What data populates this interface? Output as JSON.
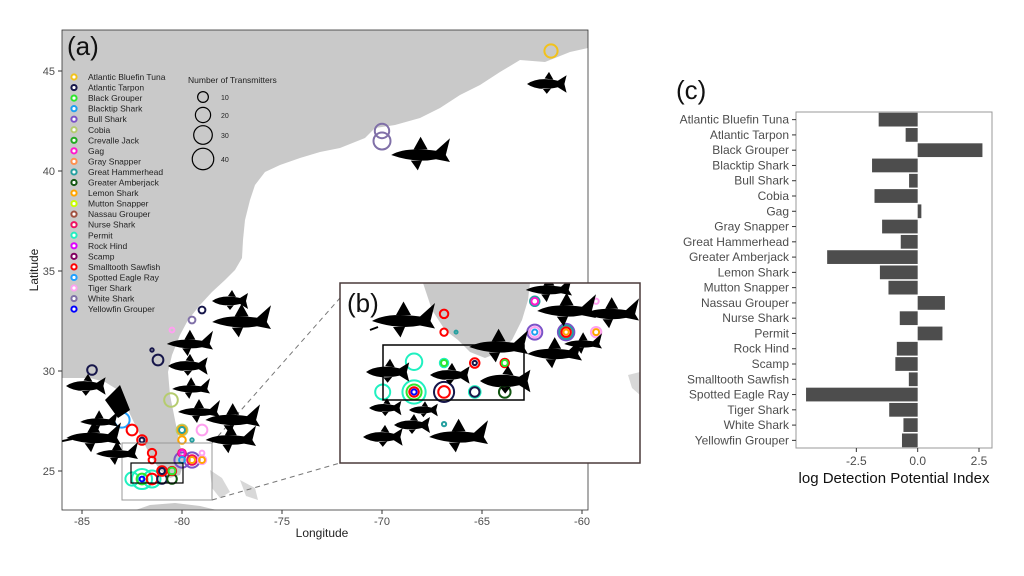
{
  "panels": {
    "a": "(a)",
    "b": "(b)",
    "c": "(c)"
  },
  "chart_data": [
    {
      "type": "scatter",
      "subtype": "bubble-map",
      "title": "",
      "xlabel": "Longitude",
      "ylabel": "Latitude",
      "xlim": [
        -86,
        -59.7
      ],
      "ylim": [
        23.05,
        47.05
      ],
      "xticks": [
        "-85",
        "-80",
        "-75",
        "-70",
        "-65",
        "-60"
      ],
      "xtick_values": [
        -85,
        -80,
        -75,
        -70,
        -65,
        -60
      ],
      "yticks": [
        "25",
        "30",
        "35",
        "40",
        "45"
      ],
      "ytick_values": [
        25,
        30,
        35,
        40,
        45
      ],
      "size_legend": {
        "title": "Number of Transmitters",
        "values": [
          10,
          20,
          30,
          40
        ],
        "labels": [
          "10",
          "20",
          "30",
          "40"
        ]
      },
      "species": [
        {
          "name": "Atlantic Bluefin Tuna",
          "color": "#f2c21b"
        },
        {
          "name": "Atlantic Tarpon",
          "color": "#16164a"
        },
        {
          "name": "Black Grouper",
          "color": "#2ee62e"
        },
        {
          "name": "Blacktip Shark",
          "color": "#1e9ff0"
        },
        {
          "name": "Bull Shark",
          "color": "#7b52c8"
        },
        {
          "name": "Cobia",
          "color": "#b5cc6e"
        },
        {
          "name": "Crevalle Jack",
          "color": "#22aa22"
        },
        {
          "name": "Gag",
          "color": "#ff1acd"
        },
        {
          "name": "Gray Snapper",
          "color": "#ff9050"
        },
        {
          "name": "Great Hammerhead",
          "color": "#26a0a0"
        },
        {
          "name": "Greater Amberjack",
          "color": "#115511"
        },
        {
          "name": "Lemon Shark",
          "color": "#ffa500"
        },
        {
          "name": "Mutton Snapper",
          "color": "#c8ff00"
        },
        {
          "name": "Nassau Grouper",
          "color": "#a05040"
        },
        {
          "name": "Nurse Shark",
          "color": "#ee1060"
        },
        {
          "name": "Permit",
          "color": "#20f0c0"
        },
        {
          "name": "Rock Hind",
          "color": "#e000ff"
        },
        {
          "name": "Scamp",
          "color": "#800060"
        },
        {
          "name": "Smalltooth Sawfish",
          "color": "#ff0000"
        },
        {
          "name": "Spotted Eagle Ray",
          "color": "#20a0ff"
        },
        {
          "name": "Tiger Shark",
          "color": "#ffa0f0"
        },
        {
          "name": "White Shark",
          "color": "#8070a8"
        },
        {
          "name": "Yellowfin Grouper",
          "color": "#0000ff"
        }
      ],
      "points": [
        {
          "species": "Atlantic Bluefin Tuna",
          "lon": -61.55,
          "lat": 46.0,
          "n": 15
        },
        {
          "species": "White Shark",
          "lon": -70,
          "lat": 41.5,
          "n": 25
        },
        {
          "species": "White Shark",
          "lon": -70,
          "lat": 42.0,
          "n": 18
        },
        {
          "species": "Atlantic Tarpon",
          "lon": -79,
          "lat": 33.05,
          "n": 4
        },
        {
          "species": "White Shark",
          "lon": -79.5,
          "lat": 32.55,
          "n": 4
        },
        {
          "species": "Tiger Shark",
          "lon": -80.5,
          "lat": 32.05,
          "n": 2
        },
        {
          "species": "Atlantic Tarpon",
          "lon": -81.5,
          "lat": 31.05,
          "n": 1
        },
        {
          "species": "Atlantic Tarpon",
          "lon": -81.2,
          "lat": 30.55,
          "n": 10
        },
        {
          "species": "Atlantic Tarpon",
          "lon": -84.5,
          "lat": 30.05,
          "n": 8
        },
        {
          "species": "Cobia",
          "lon": -80.55,
          "lat": 28.55,
          "n": 16
        },
        {
          "species": "Spotted Eagle Ray",
          "lon": -83,
          "lat": 27.55,
          "n": 20
        },
        {
          "species": "Smalltooth Sawfish",
          "lon": -82.5,
          "lat": 27.05,
          "n": 10
        },
        {
          "species": "Smalltooth Sawfish",
          "lon": -82,
          "lat": 26.55,
          "n": 8
        },
        {
          "species": "Atlantic Tarpon",
          "lon": -82,
          "lat": 26.55,
          "n": 2
        },
        {
          "species": "Cobia",
          "lon": -80,
          "lat": 27.05,
          "n": 10
        },
        {
          "species": "Lemon Shark",
          "lon": -80,
          "lat": 27.05,
          "n": 6
        },
        {
          "species": "Great Hammerhead",
          "lon": -80,
          "lat": 27.05,
          "n": 3
        },
        {
          "species": "Tiger Shark",
          "lon": -79,
          "lat": 27.05,
          "n": 10
        },
        {
          "species": "Lemon Shark",
          "lon": -80,
          "lat": 26.55,
          "n": 5
        },
        {
          "species": "Great Hammerhead",
          "lon": -79.5,
          "lat": 26.55,
          "n": 1
        },
        {
          "species": "Smalltooth Sawfish",
          "lon": -81.5,
          "lat": 25.9,
          "n": 6
        },
        {
          "species": "Smalltooth Sawfish",
          "lon": -81.5,
          "lat": 25.55,
          "n": 4
        },
        {
          "species": "Nurse Shark",
          "lon": -80,
          "lat": 25.9,
          "n": 5
        },
        {
          "species": "Gag",
          "lon": -80,
          "lat": 25.9,
          "n": 3
        },
        {
          "species": "Bull Shark",
          "lon": -80,
          "lat": 25.55,
          "n": 20
        },
        {
          "species": "Blacktip Shark",
          "lon": -80,
          "lat": 25.55,
          "n": 3
        },
        {
          "species": "Bull Shark",
          "lon": -79.5,
          "lat": 25.55,
          "n": 20
        },
        {
          "species": "Nurse Shark",
          "lon": -79.5,
          "lat": 25.55,
          "n": 8
        },
        {
          "species": "Lemon Shark",
          "lon": -79.5,
          "lat": 25.55,
          "n": 3
        },
        {
          "species": "Tiger Shark",
          "lon": -79,
          "lat": 25.55,
          "n": 6
        },
        {
          "species": "Lemon Shark",
          "lon": -79,
          "lat": 25.55,
          "n": 3
        },
        {
          "species": "Tiger Shark",
          "lon": -79,
          "lat": 25.9,
          "n": 2
        },
        {
          "species": "Permit",
          "lon": -82,
          "lat": 24.6,
          "n": 35
        },
        {
          "species": "Permit",
          "lon": -82.5,
          "lat": 24.6,
          "n": 15
        },
        {
          "species": "Permit",
          "lon": -81.5,
          "lat": 24.6,
          "n": 25
        },
        {
          "species": "Black Grouper",
          "lon": -82,
          "lat": 24.6,
          "n": 10
        },
        {
          "species": "Smalltooth Sawfish",
          "lon": -81.5,
          "lat": 24.6,
          "n": 10
        },
        {
          "species": "Atlantic Tarpon",
          "lon": -81,
          "lat": 24.6,
          "n": 8
        },
        {
          "species": "Greater Amberjack",
          "lon": -80.5,
          "lat": 24.6,
          "n": 8
        },
        {
          "species": "Smalltooth Sawfish",
          "lon": -81,
          "lat": 25.0,
          "n": 8
        },
        {
          "species": "Atlantic Tarpon",
          "lon": -81,
          "lat": 25.0,
          "n": 3
        },
        {
          "species": "Smalltooth Sawfish",
          "lon": -80.5,
          "lat": 25.0,
          "n": 6
        },
        {
          "species": "Black Grouper",
          "lon": -80.5,
          "lat": 25.0,
          "n": 4
        },
        {
          "species": "Yellowfin Grouper",
          "lon": -82,
          "lat": 24.6,
          "n": 2
        }
      ],
      "inset_points": [
        {
          "species": "Smalltooth Sawfish",
          "lon": -81.44,
          "lat": 25.91,
          "n": 8
        },
        {
          "species": "Smalltooth Sawfish",
          "lon": -81.44,
          "lat": 25.62,
          "n": 6
        },
        {
          "species": "Great Hammerhead",
          "lon": -81.26,
          "lat": 25.62,
          "n": 1
        },
        {
          "species": "Permit",
          "lon": -81.89,
          "lat": 25.15,
          "n": 30
        },
        {
          "species": "Permit",
          "lon": -81.44,
          "lat": 25.13,
          "n": 8
        },
        {
          "species": "Black Grouper",
          "lon": -81.44,
          "lat": 25.13,
          "n": 4
        },
        {
          "species": "Smalltooth Sawfish",
          "lon": -80.98,
          "lat": 25.13,
          "n": 10
        },
        {
          "species": "Atlantic Tarpon",
          "lon": -80.98,
          "lat": 25.13,
          "n": 2
        },
        {
          "species": "Smalltooth Sawfish",
          "lon": -80.53,
          "lat": 25.13,
          "n": 8
        },
        {
          "species": "Black Grouper",
          "lon": -80.53,
          "lat": 25.13,
          "n": 4
        },
        {
          "species": "Permit",
          "lon": -82.36,
          "lat": 24.67,
          "n": 25
        },
        {
          "species": "Permit",
          "lon": -81.89,
          "lat": 24.67,
          "n": 60
        },
        {
          "species": "Black Grouper",
          "lon": -81.89,
          "lat": 24.67,
          "n": 25
        },
        {
          "species": "Smalltooth Sawfish",
          "lon": -81.89,
          "lat": 24.67,
          "n": 10
        },
        {
          "species": "Yellowfin Grouper",
          "lon": -81.89,
          "lat": 24.67,
          "n": 3
        },
        {
          "species": "Atlantic Tarpon",
          "lon": -81.44,
          "lat": 24.67,
          "n": 45
        },
        {
          "species": "Smalltooth Sawfish",
          "lon": -81.44,
          "lat": 24.67,
          "n": 15
        },
        {
          "species": "Permit",
          "lon": -80.98,
          "lat": 24.67,
          "n": 15
        },
        {
          "species": "Atlantic Tarpon",
          "lon": -80.98,
          "lat": 24.67,
          "n": 10
        },
        {
          "species": "Greater Amberjack",
          "lon": -80.53,
          "lat": 24.67,
          "n": 15
        },
        {
          "species": "Great Hammerhead",
          "lon": -81.44,
          "lat": 24.16,
          "n": 2
        },
        {
          "species": "Great Hammerhead",
          "lon": -80.08,
          "lat": 26.11,
          "n": 10
        },
        {
          "species": "Gag",
          "lon": -80.08,
          "lat": 26.11,
          "n": 5
        },
        {
          "species": "Bull Shark",
          "lon": -80.08,
          "lat": 25.62,
          "n": 25
        },
        {
          "species": "Tiger Shark",
          "lon": -80.08,
          "lat": 25.62,
          "n": 12
        },
        {
          "species": "Blacktip Shark",
          "lon": -80.08,
          "lat": 25.62,
          "n": 3
        },
        {
          "species": "Bull Shark",
          "lon": -79.61,
          "lat": 25.62,
          "n": 30
        },
        {
          "species": "Great Hammerhead",
          "lon": -79.61,
          "lat": 25.62,
          "n": 20
        },
        {
          "species": "Smalltooth Sawfish",
          "lon": -79.61,
          "lat": 25.62,
          "n": 10
        },
        {
          "species": "Lemon Shark",
          "lon": -79.61,
          "lat": 25.62,
          "n": 3
        },
        {
          "species": "Tiger Shark",
          "lon": -79.16,
          "lat": 26.11,
          "n": 3
        },
        {
          "species": "Tiger Shark",
          "lon": -79.16,
          "lat": 25.62,
          "n": 12
        },
        {
          "species": "Lemon Shark",
          "lon": -79.16,
          "lat": 25.62,
          "n": 4
        }
      ]
    },
    {
      "type": "bar",
      "orientation": "horizontal",
      "title": "",
      "xlabel": "log Detection Potential Index",
      "ylabel": "",
      "xlim": [
        -4.96,
        3.03
      ],
      "xticks": [
        "-2.5",
        "0.0",
        "2.5"
      ],
      "xtick_values": [
        -2.5,
        0,
        2.5
      ],
      "bar_color": "#4d4d4d",
      "categories": [
        "Atlantic Bluefin Tuna",
        "Atlantic Tarpon",
        "Black Grouper",
        "Blacktip Shark",
        "Bull Shark",
        "Cobia",
        "Gag",
        "Gray Snapper",
        "Great Hammerhead",
        "Greater Amberjack",
        "Lemon Shark",
        "Mutton Snapper",
        "Nassau Grouper",
        "Nurse Shark",
        "Permit",
        "Rock Hind",
        "Scamp",
        "Smalltooth Sawfish",
        "Spotted Eagle Ray",
        "Tiger Shark",
        "White Shark",
        "Yellowfin Grouper"
      ],
      "values": [
        -1.59,
        -0.49,
        2.64,
        -1.86,
        -0.35,
        -1.76,
        0.15,
        -1.45,
        -0.69,
        -3.69,
        -1.54,
        -1.19,
        1.11,
        -0.73,
        1.01,
        -0.85,
        -0.91,
        -0.36,
        -4.55,
        -1.16,
        -0.58,
        -0.64
      ]
    }
  ]
}
